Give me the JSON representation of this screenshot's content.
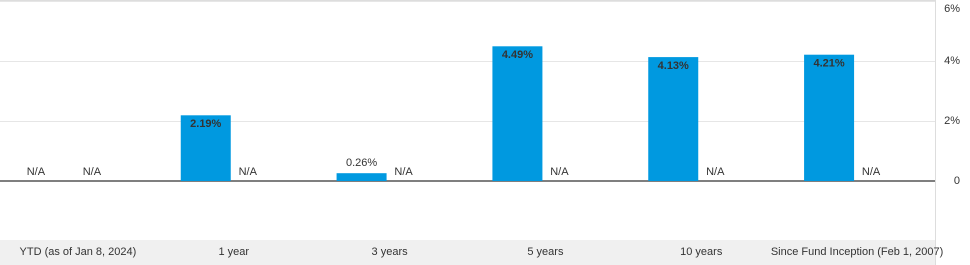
{
  "chart_data": {
    "type": "bar",
    "categories": [
      "YTD (as of Jan 8, 2024)",
      "1 year",
      "3 years",
      "5 years",
      "10 years",
      "Since Fund Inception (Feb 1, 2007)"
    ],
    "series": [
      {
        "color": "#0099e0",
        "values": [
          null,
          2.19,
          0.26,
          4.49,
          4.13,
          4.21
        ],
        "value_labels": [
          "N/A",
          "2.19%",
          "0.26%",
          "4.49%",
          "4.13%",
          "4.21%"
        ]
      },
      {
        "values": [
          null,
          null,
          null,
          null,
          null,
          null
        ],
        "value_labels": [
          "N/A",
          "N/A",
          "N/A",
          "N/A",
          "N/A",
          "N/A"
        ]
      }
    ],
    "ylim": [
      -2,
      6
    ],
    "yticks": [
      {
        "value": 6,
        "label": "6%"
      },
      {
        "value": 4,
        "label": "4%"
      },
      {
        "value": 2,
        "label": "2%"
      },
      0
    ],
    "grid": true
  }
}
